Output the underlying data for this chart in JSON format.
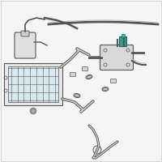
{
  "bg_color": "#f5f5f5",
  "border_color": "#cccccc",
  "line_color": "#555555",
  "highlight_color": "#2a9d8f",
  "part_color": "#888888",
  "fig_size": [
    2.0,
    2.0
  ],
  "dpi": 100
}
